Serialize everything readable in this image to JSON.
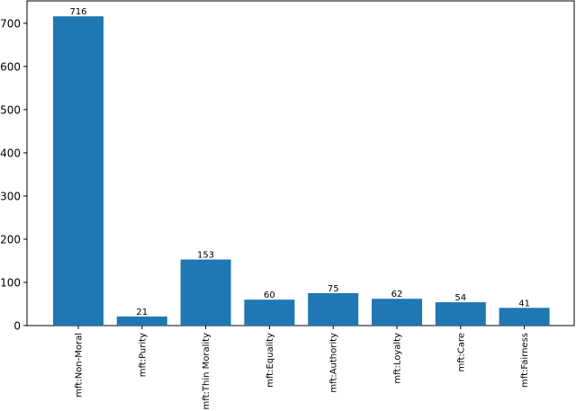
{
  "chart_data": {
    "type": "bar",
    "categories": [
      "mft:Non-Moral",
      "mft:Purity",
      "mft:Thin Morality",
      "mft:Equality",
      "mft:Authority",
      "mft:Loyalty",
      "mft:Care",
      "mft:Fairness"
    ],
    "values": [
      716,
      21,
      153,
      60,
      75,
      62,
      54,
      41
    ],
    "color": "#1f77b4",
    "ylim": [
      0,
      751.8
    ],
    "yticks": [
      0,
      100,
      200,
      300,
      400,
      500,
      600,
      700
    ]
  }
}
